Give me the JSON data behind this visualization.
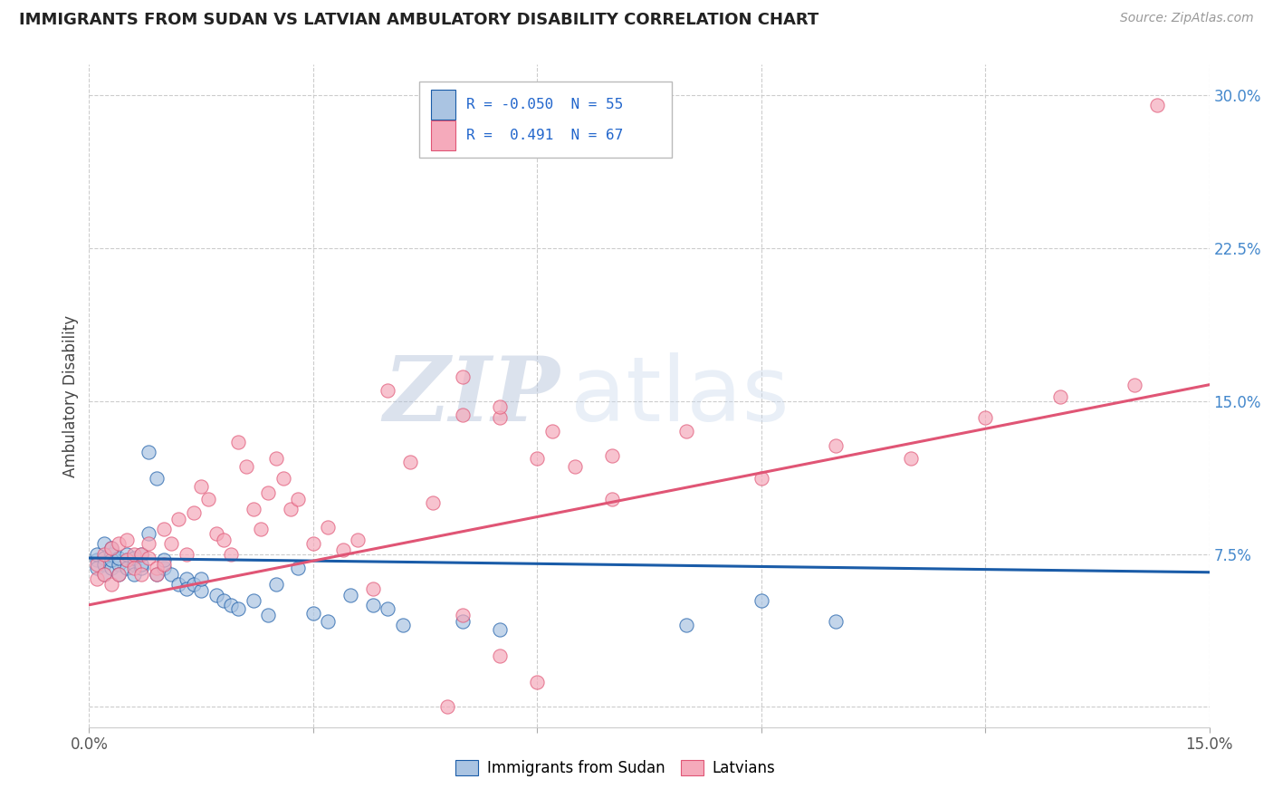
{
  "title": "IMMIGRANTS FROM SUDAN VS LATVIAN AMBULATORY DISABILITY CORRELATION CHART",
  "source": "Source: ZipAtlas.com",
  "ylabel": "Ambulatory Disability",
  "legend_labels": [
    "Immigrants from Sudan",
    "Latvians"
  ],
  "r_blue": -0.05,
  "n_blue": 55,
  "r_pink": 0.491,
  "n_pink": 67,
  "xlim": [
    0.0,
    0.15
  ],
  "ylim": [
    -0.01,
    0.315
  ],
  "yticks": [
    0.0,
    0.075,
    0.15,
    0.225,
    0.3
  ],
  "ytick_labels": [
    "",
    "7.5%",
    "15.0%",
    "22.5%",
    "30.0%"
  ],
  "xticks": [
    0.0,
    0.03,
    0.06,
    0.09,
    0.12,
    0.15
  ],
  "xtick_labels": [
    "0.0%",
    "",
    "",
    "",
    "",
    "15.0%"
  ],
  "color_blue": "#aac4e2",
  "color_pink": "#f5aabb",
  "line_color_blue": "#1a5ca8",
  "line_color_pink": "#e05575",
  "watermark": "ZIPatlas",
  "blue_scatter_x": [
    0.001,
    0.001,
    0.001,
    0.002,
    0.002,
    0.002,
    0.002,
    0.003,
    0.003,
    0.003,
    0.003,
    0.004,
    0.004,
    0.004,
    0.005,
    0.005,
    0.005,
    0.006,
    0.006,
    0.006,
    0.007,
    0.007,
    0.007,
    0.008,
    0.008,
    0.009,
    0.009,
    0.01,
    0.01,
    0.011,
    0.012,
    0.013,
    0.013,
    0.014,
    0.015,
    0.015,
    0.017,
    0.018,
    0.019,
    0.02,
    0.022,
    0.024,
    0.025,
    0.028,
    0.03,
    0.032,
    0.035,
    0.038,
    0.04,
    0.042,
    0.05,
    0.055,
    0.08,
    0.09,
    0.1
  ],
  "blue_scatter_y": [
    0.072,
    0.075,
    0.068,
    0.073,
    0.07,
    0.065,
    0.08,
    0.068,
    0.075,
    0.072,
    0.078,
    0.07,
    0.073,
    0.065,
    0.072,
    0.068,
    0.075,
    0.07,
    0.065,
    0.073,
    0.068,
    0.075,
    0.07,
    0.125,
    0.085,
    0.112,
    0.065,
    0.068,
    0.072,
    0.065,
    0.06,
    0.063,
    0.058,
    0.06,
    0.057,
    0.063,
    0.055,
    0.052,
    0.05,
    0.048,
    0.052,
    0.045,
    0.06,
    0.068,
    0.046,
    0.042,
    0.055,
    0.05,
    0.048,
    0.04,
    0.042,
    0.038,
    0.04,
    0.052,
    0.042
  ],
  "pink_scatter_x": [
    0.001,
    0.001,
    0.002,
    0.002,
    0.003,
    0.003,
    0.004,
    0.004,
    0.005,
    0.005,
    0.006,
    0.006,
    0.007,
    0.007,
    0.008,
    0.008,
    0.009,
    0.009,
    0.01,
    0.01,
    0.011,
    0.012,
    0.013,
    0.014,
    0.015,
    0.016,
    0.017,
    0.018,
    0.019,
    0.02,
    0.021,
    0.022,
    0.023,
    0.024,
    0.025,
    0.026,
    0.027,
    0.028,
    0.03,
    0.032,
    0.034,
    0.036,
    0.038,
    0.04,
    0.043,
    0.046,
    0.05,
    0.055,
    0.06,
    0.065,
    0.07,
    0.08,
    0.09,
    0.1,
    0.11,
    0.12,
    0.13,
    0.14,
    0.048,
    0.05,
    0.055,
    0.06,
    0.05,
    0.055,
    0.062,
    0.07,
    0.143
  ],
  "pink_scatter_y": [
    0.07,
    0.063,
    0.075,
    0.065,
    0.078,
    0.06,
    0.08,
    0.065,
    0.072,
    0.082,
    0.075,
    0.068,
    0.065,
    0.075,
    0.073,
    0.08,
    0.068,
    0.065,
    0.087,
    0.07,
    0.08,
    0.092,
    0.075,
    0.095,
    0.108,
    0.102,
    0.085,
    0.082,
    0.075,
    0.13,
    0.118,
    0.097,
    0.087,
    0.105,
    0.122,
    0.112,
    0.097,
    0.102,
    0.08,
    0.088,
    0.077,
    0.082,
    0.058,
    0.155,
    0.12,
    0.1,
    0.143,
    0.142,
    0.122,
    0.118,
    0.102,
    0.135,
    0.112,
    0.128,
    0.122,
    0.142,
    0.152,
    0.158,
    0.0,
    0.045,
    0.025,
    0.012,
    0.162,
    0.147,
    0.135,
    0.123,
    0.295
  ],
  "blue_line_x": [
    0.0,
    0.15
  ],
  "blue_line_y": [
    0.073,
    0.066
  ],
  "pink_line_x": [
    0.0,
    0.15
  ],
  "pink_line_y": [
    0.05,
    0.158
  ]
}
